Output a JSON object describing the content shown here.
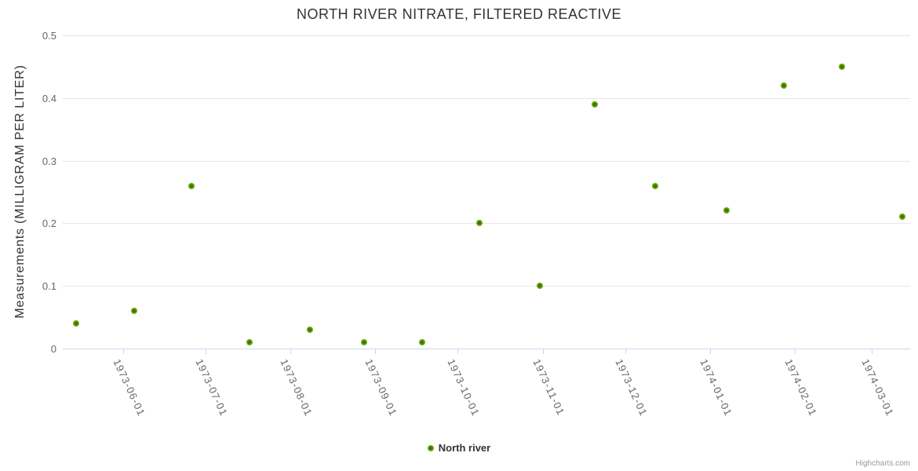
{
  "title": "NORTH RIVER NITRATE, FILTERED REACTIVE",
  "legend": {
    "label": "North river"
  },
  "credits": {
    "label": "Highcharts.com"
  },
  "colors": {
    "point_green": "#68aa0f",
    "point_green_dark": "#3c7300",
    "title_text": "#333333",
    "axis_label_text": "#666666",
    "gridline": "#e6e6e6",
    "axis_line": "#ccd6eb",
    "credits_text": "#999999"
  },
  "chart_data": {
    "type": "scatter",
    "title": "NORTH RIVER NITRATE, FILTERED REACTIVE",
    "xlabel": "",
    "ylabel": "Measurements (MILLIGRAM PER LITER)",
    "ylim": [
      0,
      0.5
    ],
    "y_ticks": [
      0,
      0.1,
      0.2,
      0.3,
      0.4,
      0.5
    ],
    "y_tick_labels": [
      "0",
      "0.1",
      "0.2",
      "0.3",
      "0.4",
      "0.5"
    ],
    "x_range": [
      "1973-05-10",
      "1974-03-15"
    ],
    "x_ticks": [
      "1973-06-01",
      "1973-07-01",
      "1973-08-01",
      "1973-09-01",
      "1973-10-01",
      "1973-11-01",
      "1973-12-01",
      "1974-01-01",
      "1974-02-01",
      "1974-03-01"
    ],
    "grid": true,
    "legend_position": "bottom-center",
    "series": [
      {
        "name": "North river",
        "color": "#68aa0f",
        "points": [
          {
            "x": "1973-05-15",
            "y": 0.04
          },
          {
            "x": "1973-06-05",
            "y": 0.06
          },
          {
            "x": "1973-06-26",
            "y": 0.26
          },
          {
            "x": "1973-07-17",
            "y": 0.01
          },
          {
            "x": "1973-08-08",
            "y": 0.03
          },
          {
            "x": "1973-08-28",
            "y": 0.01
          },
          {
            "x": "1973-09-18",
            "y": 0.01
          },
          {
            "x": "1973-10-09",
            "y": 0.2
          },
          {
            "x": "1973-10-31",
            "y": 0.1
          },
          {
            "x": "1973-11-20",
            "y": 0.39
          },
          {
            "x": "1973-12-12",
            "y": 0.26
          },
          {
            "x": "1974-01-07",
            "y": 0.22
          },
          {
            "x": "1974-01-28",
            "y": 0.42
          },
          {
            "x": "1974-02-18",
            "y": 0.45
          },
          {
            "x": "1974-03-12",
            "y": 0.21
          }
        ]
      }
    ]
  }
}
